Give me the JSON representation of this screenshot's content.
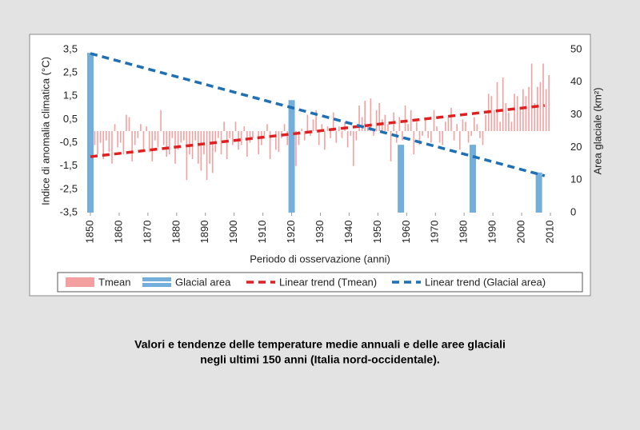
{
  "chart_data": {
    "type": "bar",
    "xlabel": "Periodo di osservazione (anni)",
    "ylabel": "Indice di anomalia climatica (°C)",
    "y2label": "Area glaciale (km²)",
    "xlim": [
      1850,
      2010
    ],
    "xticks": [
      1850,
      1860,
      1870,
      1880,
      1890,
      1900,
      1910,
      1920,
      1930,
      1940,
      1950,
      1960,
      1970,
      1980,
      1990,
      2000,
      2010
    ],
    "ylim": [
      -3.5,
      3.5
    ],
    "yticks": [
      {
        "value": 3.5,
        "label": "3,5"
      },
      {
        "value": 2.5,
        "label": "2,5"
      },
      {
        "value": 1.5,
        "label": "1,5"
      },
      {
        "value": 0.5,
        "label": "0,5"
      },
      {
        "value": -0.5,
        "label": "-0,5"
      },
      {
        "value": -1.5,
        "label": "-1,5"
      },
      {
        "value": -2.5,
        "label": "-2,5"
      },
      {
        "value": -3.5,
        "label": "-3,5"
      }
    ],
    "y2lim": [
      0,
      50
    ],
    "y2ticks": [
      0,
      10,
      20,
      30,
      40,
      50
    ],
    "series": [
      {
        "name": "Tmean",
        "type": "bar",
        "color": "#f4a0a0",
        "x": [
          1850,
          1851,
          1852,
          1853,
          1854,
          1855,
          1856,
          1857,
          1858,
          1859,
          1860,
          1861,
          1862,
          1863,
          1864,
          1865,
          1866,
          1867,
          1868,
          1869,
          1870,
          1871,
          1872,
          1873,
          1874,
          1875,
          1876,
          1877,
          1878,
          1879,
          1880,
          1881,
          1882,
          1883,
          1884,
          1885,
          1886,
          1887,
          1888,
          1889,
          1890,
          1891,
          1892,
          1893,
          1894,
          1895,
          1896,
          1897,
          1898,
          1899,
          1900,
          1901,
          1902,
          1903,
          1904,
          1905,
          1906,
          1907,
          1908,
          1909,
          1910,
          1911,
          1912,
          1913,
          1914,
          1915,
          1916,
          1917,
          1918,
          1919,
          1920,
          1921,
          1922,
          1923,
          1924,
          1925,
          1926,
          1927,
          1928,
          1929,
          1930,
          1931,
          1932,
          1933,
          1934,
          1935,
          1936,
          1937,
          1938,
          1939,
          1940,
          1941,
          1942,
          1943,
          1944,
          1945,
          1946,
          1947,
          1948,
          1949,
          1950,
          1951,
          1952,
          1953,
          1954,
          1955,
          1956,
          1957,
          1958,
          1959,
          1960,
          1961,
          1962,
          1963,
          1964,
          1965,
          1966,
          1967,
          1968,
          1969,
          1970,
          1971,
          1972,
          1973,
          1974,
          1975,
          1976,
          1977,
          1978,
          1979,
          1980,
          1981,
          1982,
          1983,
          1984,
          1985,
          1986,
          1987,
          1988,
          1989,
          1990,
          1991,
          1992,
          1993,
          1994,
          1995,
          1996,
          1997,
          1998,
          1999,
          2000,
          2001,
          2002,
          2003,
          2004,
          2005,
          2006,
          2007,
          2008,
          2009
        ],
        "values": [
          -0.8,
          -0.6,
          -1.0,
          -0.5,
          -1.2,
          -0.4,
          -0.9,
          -1.4,
          0.3,
          -0.7,
          -0.5,
          -1.0,
          0.7,
          0.6,
          -1.3,
          -0.6,
          -0.3,
          0.3,
          -0.8,
          0.2,
          -0.9,
          -1.3,
          -0.4,
          -0.7,
          0.9,
          -0.6,
          -1.1,
          -1.0,
          -0.3,
          -1.4,
          -0.8,
          -0.5,
          -0.4,
          -2.1,
          -1.0,
          -1.2,
          -0.4,
          -1.4,
          -1.7,
          -1.0,
          -2.1,
          -1.4,
          -1.8,
          -0.9,
          -0.3,
          -1.0,
          0.4,
          -1.2,
          -0.3,
          -0.6,
          0.4,
          -0.8,
          -0.6,
          0.2,
          -1.1,
          -0.5,
          -0.3,
          0.0,
          -1.0,
          -0.6,
          -0.2,
          0.3,
          -1.2,
          0.0,
          -0.8,
          -0.9,
          -0.3,
          0.3,
          -0.6,
          -1.0,
          -0.5,
          -1.5,
          -0.6,
          0.1,
          -0.4,
          0.7,
          -0.2,
          0.5,
          0.9,
          -0.6,
          0.3,
          -0.8,
          0.2,
          -0.3,
          0.8,
          -0.5,
          0.2,
          -0.3,
          0.4,
          -0.7,
          -0.2,
          -1.5,
          -0.4,
          1.1,
          0.6,
          1.3,
          0.2,
          1.4,
          -0.2,
          0.9,
          1.2,
          0.5,
          0.7,
          0.3,
          -1.3,
          0.8,
          -0.5,
          0.6,
          -0.4,
          1.1,
          0.3,
          0.9,
          -1.0,
          0.4,
          -0.6,
          -0.2,
          0.6,
          -0.3,
          -0.5,
          0.9,
          0.2,
          -0.5,
          -0.6,
          0.4,
          0.6,
          1.0,
          -0.4,
          0.3,
          -0.8,
          0.5,
          0.4,
          -0.5,
          -0.2,
          0.6,
          0.3,
          -0.3,
          -0.6,
          0.7,
          1.6,
          1.5,
          0.9,
          2.1,
          0.4,
          2.3,
          1.2,
          0.8,
          0.4,
          1.6,
          1.5,
          1.0,
          1.8,
          1.5,
          1.9,
          2.9,
          1.2,
          1.9,
          2.1,
          2.9,
          1.8,
          2.4
        ]
      },
      {
        "name": "Glacial area",
        "type": "bar",
        "axis": "y2",
        "color": "#74aedb",
        "x": [
          1850,
          1920,
          1958,
          1983,
          2006
        ],
        "values": [
          49,
          34.5,
          20.8,
          20.8,
          12.3
        ]
      },
      {
        "name": "Linear trend (Tmean)",
        "type": "line",
        "dashed": true,
        "color": "#e02020",
        "x": [
          1850,
          2008
        ],
        "values": [
          -1.1,
          1.1
        ]
      },
      {
        "name": "Linear trend (Glacial area)",
        "type": "line",
        "dashed": true,
        "axis": "y2",
        "color": "#1f6fb5",
        "x": [
          1850,
          2008
        ],
        "values": [
          48.8,
          11.3
        ]
      }
    ]
  },
  "caption": [
    "Valori e tendenze delle temperature medie annuali e delle aree glaciali",
    "negli ultimi 150 anni (Italia nord-occidentale)."
  ]
}
